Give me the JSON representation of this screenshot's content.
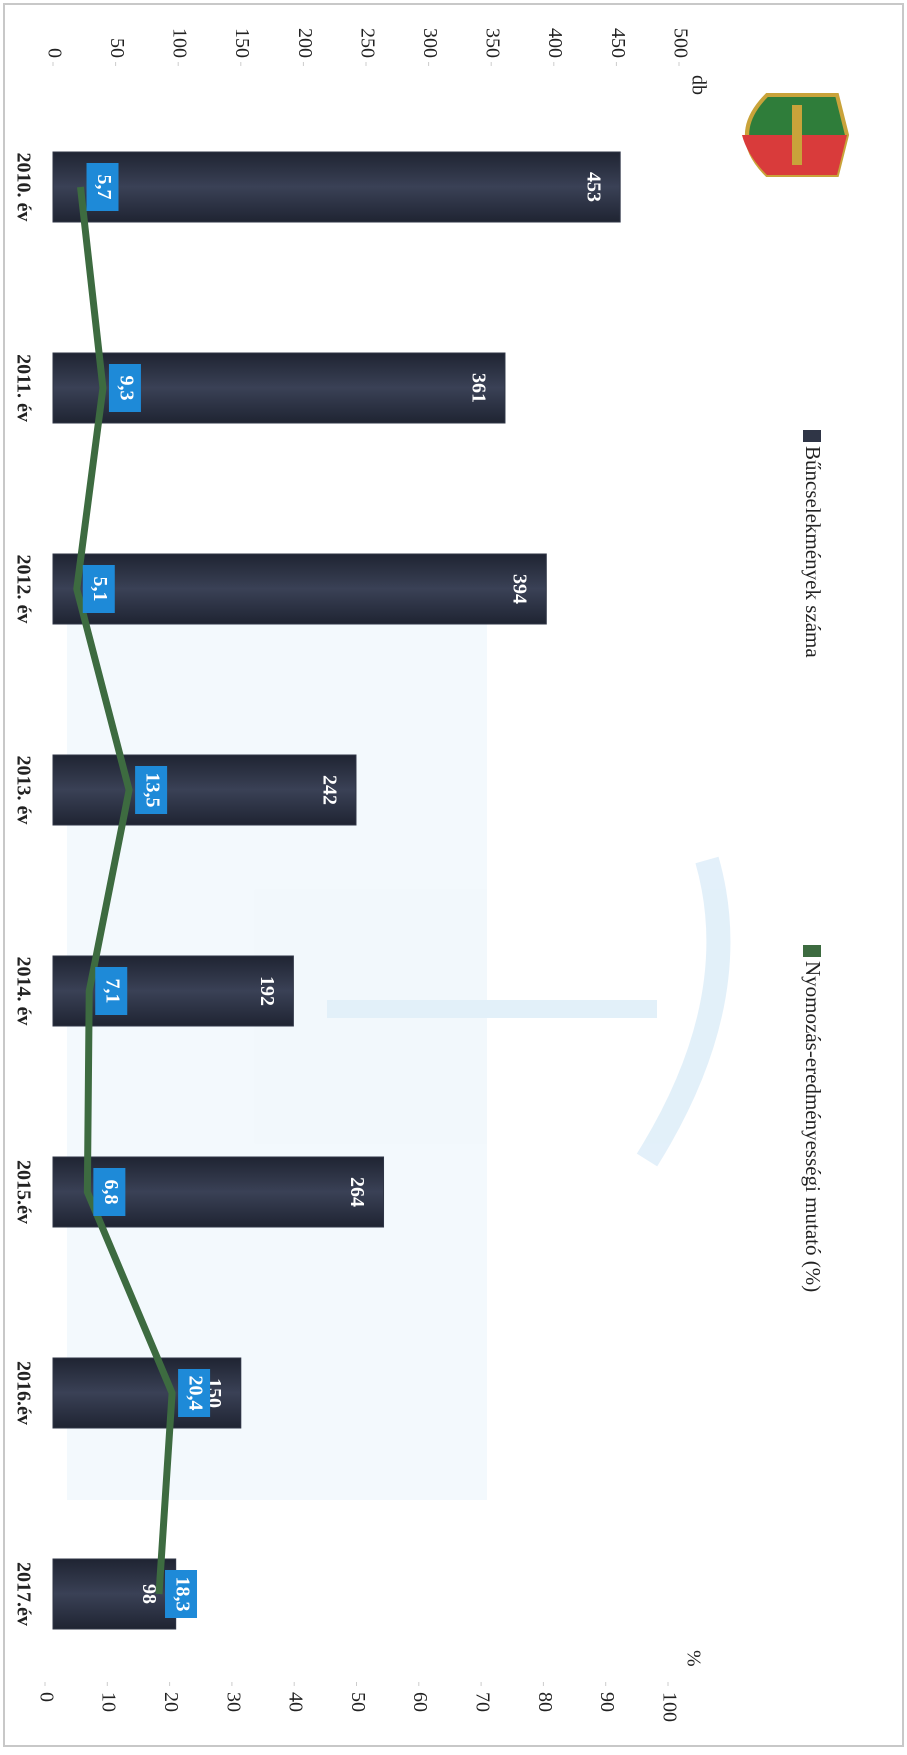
{
  "chart_data": {
    "type": "bar",
    "categories": [
      "2010. év",
      "2011. év",
      "2012. év",
      "2013. év",
      "2014. év",
      "2015.év",
      "2016.év",
      "2017.év"
    ],
    "series": [
      {
        "name": "Bűncselekmények száma",
        "color": "#2f3546",
        "values": [
          453,
          361,
          394,
          242,
          192,
          264,
          150,
          98
        ]
      },
      {
        "name": "Nyomozás-eredményességi mutató (%)",
        "color": "#3d6b40",
        "type": "line",
        "axis": "y2",
        "values": [
          5.7,
          9.3,
          5.1,
          13.5,
          7.1,
          6.8,
          20.4,
          18.3
        ],
        "value_labels": [
          "5,7",
          "9,3",
          "5,1",
          "13,5",
          "7,1",
          "6,8",
          "20,4",
          "18,3"
        ]
      }
    ],
    "ylabel": "db",
    "y2label": "%",
    "ylim": [
      0,
      500
    ],
    "yticks": [
      0,
      50,
      100,
      150,
      200,
      250,
      300,
      350,
      400,
      450,
      500
    ],
    "y2lim": [
      0,
      100
    ],
    "y2ticks": [
      0,
      10,
      20,
      30,
      40,
      50,
      60,
      70,
      80,
      90,
      100
    ],
    "legend": "top",
    "grid": false
  }
}
